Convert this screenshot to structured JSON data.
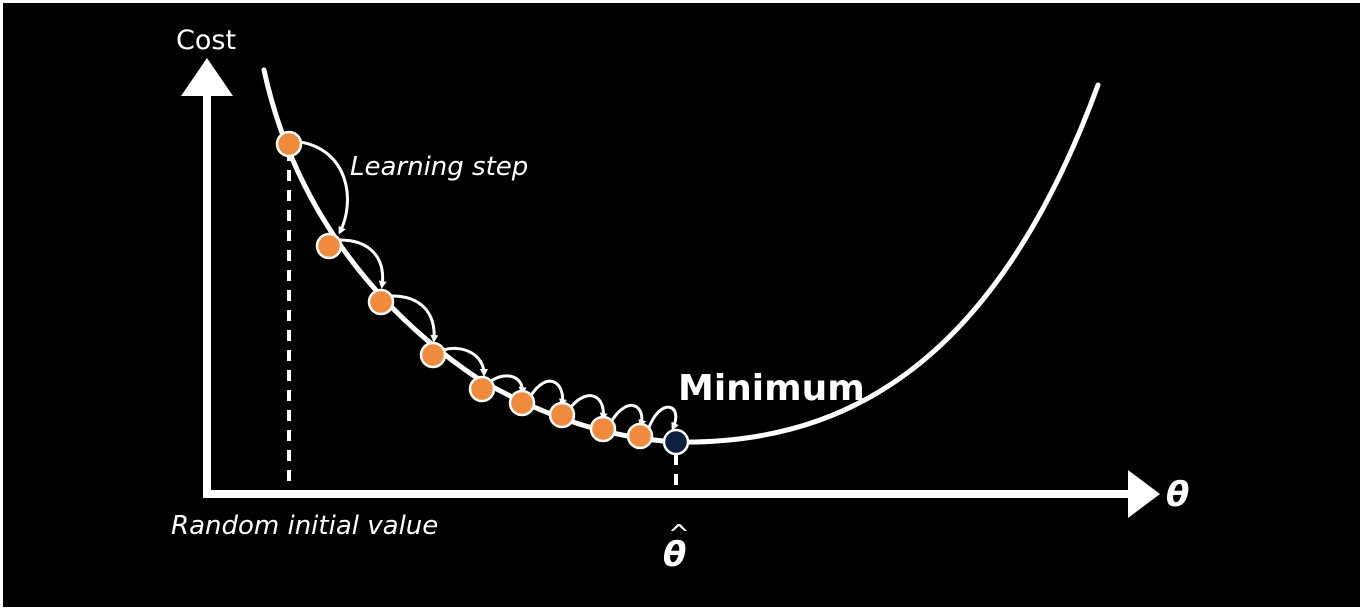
{
  "colors": {
    "background": "#000000",
    "frame": "#ffffff",
    "curve": "#ffffff",
    "step_point": "#f08a3c",
    "minimum_point": "#0e1f3f",
    "text": "#ffffff"
  },
  "labels": {
    "y_axis": "Cost",
    "x_axis": "θ",
    "learning_step": "Learning step",
    "minimum": "Minimum",
    "random_initial": "Random initial value",
    "theta_hat_symbol": "θ",
    "theta_hat_accent": "^"
  },
  "diagram": {
    "step_count": 9,
    "has_minimum_marker": true,
    "has_dashed_guides": true
  }
}
